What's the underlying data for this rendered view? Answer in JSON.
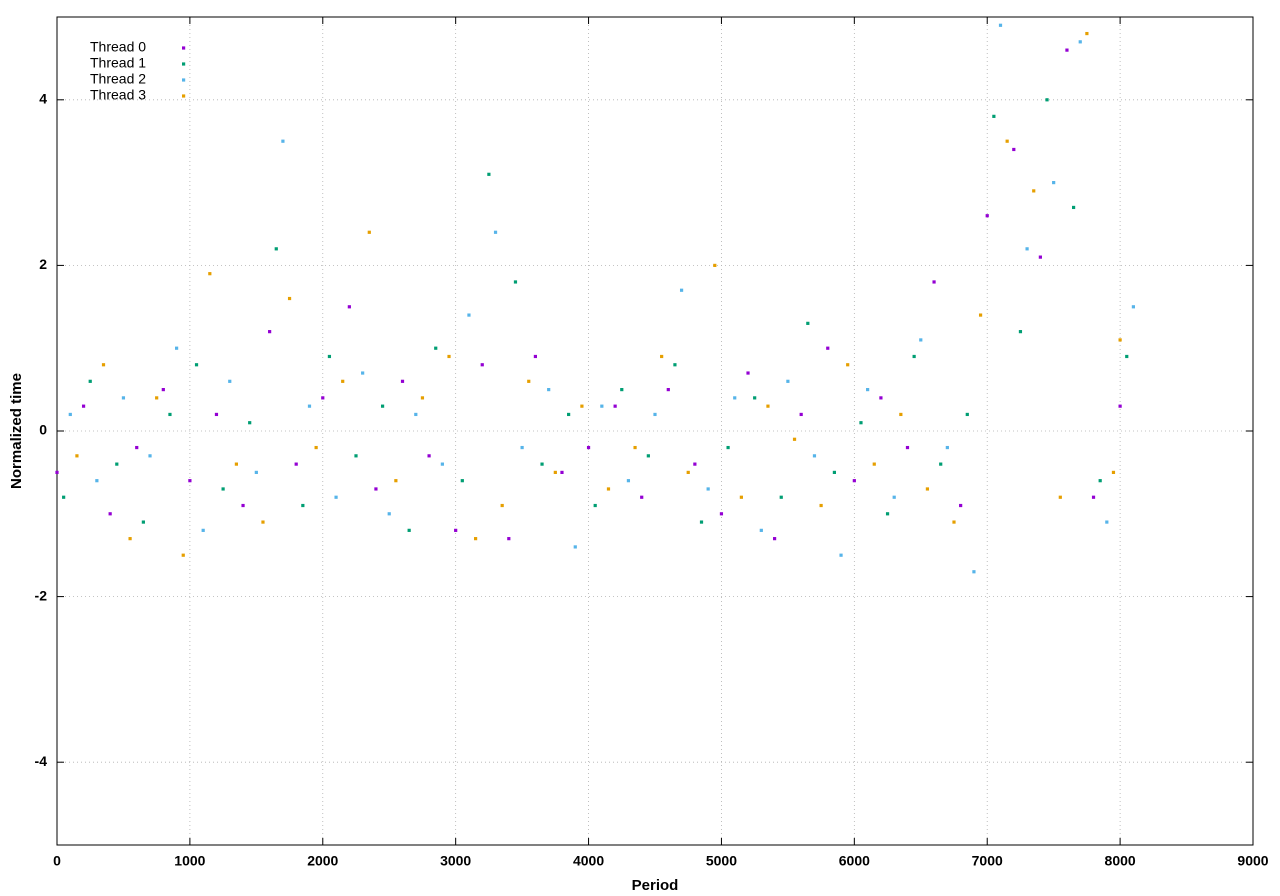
{
  "chart_data": {
    "type": "scatter",
    "x_label": "Period",
    "y_label": "Normalized time",
    "xlim": [
      0,
      9000
    ],
    "ylim": [
      -5,
      5
    ],
    "xticks": [
      0,
      1000,
      2000,
      3000,
      4000,
      5000,
      6000,
      7000,
      8000,
      9000
    ],
    "yticks": [
      -4,
      -2,
      0,
      2,
      4
    ],
    "grid": true,
    "legend": "top-left",
    "series": [
      {
        "name": "Thread 0",
        "color": "#9400d3",
        "x": [
          0,
          200,
          400,
          600,
          800,
          1000,
          1200,
          1400,
          1600,
          1800,
          2000,
          2200,
          2400,
          2600,
          2800,
          3000,
          3200,
          3400,
          3600,
          3800,
          4000,
          4200,
          4400,
          4600,
          4800,
          5000,
          5200,
          5400,
          5600,
          5800,
          6000,
          6200,
          6400,
          6600,
          6800,
          7000,
          7200,
          7400,
          7600,
          7800,
          8000
        ],
        "values": [
          -0.5,
          0.3,
          -1.0,
          -0.2,
          0.5,
          -0.6,
          0.2,
          -0.9,
          1.2,
          -0.4,
          0.4,
          1.5,
          -0.7,
          0.6,
          -0.3,
          -1.2,
          0.8,
          -1.3,
          0.9,
          -0.5,
          -0.2,
          0.3,
          -0.8,
          0.5,
          -0.4,
          -1.0,
          0.7,
          -1.3,
          0.2,
          1.0,
          -0.6,
          0.4,
          -0.2,
          1.8,
          -0.9,
          2.6,
          3.4,
          2.1,
          4.6,
          -0.8,
          0.3
        ]
      },
      {
        "name": "Thread 1",
        "color": "#009e73",
        "x": [
          50,
          250,
          450,
          650,
          850,
          1050,
          1250,
          1450,
          1650,
          1850,
          2050,
          2250,
          2450,
          2650,
          2850,
          3050,
          3250,
          3450,
          3650,
          3850,
          4050,
          4250,
          4450,
          4650,
          4850,
          5050,
          5250,
          5450,
          5650,
          5850,
          6050,
          6250,
          6450,
          6650,
          6850,
          7050,
          7250,
          7450,
          7650,
          7850,
          8050
        ],
        "values": [
          -0.8,
          0.6,
          -0.4,
          -1.1,
          0.2,
          0.8,
          -0.7,
          0.1,
          2.2,
          -0.9,
          0.9,
          -0.3,
          0.3,
          -1.2,
          1.0,
          -0.6,
          3.1,
          1.8,
          -0.4,
          0.2,
          -0.9,
          0.5,
          -0.3,
          0.8,
          -1.1,
          -0.2,
          0.4,
          -0.8,
          1.3,
          -0.5,
          0.1,
          -1.0,
          0.9,
          -0.4,
          0.2,
          3.8,
          1.2,
          4.0,
          2.7,
          -0.6,
          0.9
        ]
      },
      {
        "name": "Thread 2",
        "color": "#56b4e9",
        "x": [
          100,
          300,
          500,
          700,
          900,
          1100,
          1300,
          1500,
          1700,
          1900,
          2100,
          2300,
          2500,
          2700,
          2900,
          3100,
          3300,
          3500,
          3700,
          3900,
          4100,
          4300,
          4500,
          4700,
          4900,
          5100,
          5300,
          5500,
          5700,
          5900,
          6100,
          6300,
          6500,
          6700,
          6900,
          7100,
          7300,
          7500,
          7700,
          7900,
          8100
        ],
        "values": [
          0.2,
          -0.6,
          0.4,
          -0.3,
          1.0,
          -1.2,
          0.6,
          -0.5,
          3.5,
          0.3,
          -0.8,
          0.7,
          -1.0,
          0.2,
          -0.4,
          1.4,
          2.4,
          -0.2,
          0.5,
          -1.4,
          0.3,
          -0.6,
          0.2,
          1.7,
          -0.7,
          0.4,
          -1.2,
          0.6,
          -0.3,
          -1.5,
          0.5,
          -0.8,
          1.1,
          -0.2,
          -1.7,
          4.9,
          2.2,
          3.0,
          4.7,
          -1.1,
          1.5
        ]
      },
      {
        "name": "Thread 3",
        "color": "#e69f00",
        "x": [
          150,
          350,
          550,
          750,
          950,
          1150,
          1350,
          1550,
          1750,
          1950,
          2150,
          2350,
          2550,
          2750,
          2950,
          3150,
          3350,
          3550,
          3750,
          3950,
          4150,
          4350,
          4550,
          4750,
          4950,
          5150,
          5350,
          5550,
          5750,
          5950,
          6150,
          6350,
          6550,
          6750,
          6950,
          7150,
          7350,
          7550,
          7750,
          7950,
          8000
        ],
        "values": [
          -0.3,
          0.8,
          -1.3,
          0.4,
          -1.5,
          1.9,
          -0.4,
          -1.1,
          1.6,
          -0.2,
          0.6,
          2.4,
          -0.6,
          0.4,
          0.9,
          -1.3,
          -0.9,
          0.6,
          -0.5,
          0.3,
          -0.7,
          -0.2,
          0.9,
          -0.5,
          2.0,
          -0.8,
          0.3,
          -0.1,
          -0.9,
          0.8,
          -0.4,
          0.2,
          -0.7,
          -1.1,
          1.4,
          3.5,
          2.9,
          -0.8,
          4.8,
          -0.5,
          1.1
        ]
      }
    ]
  }
}
